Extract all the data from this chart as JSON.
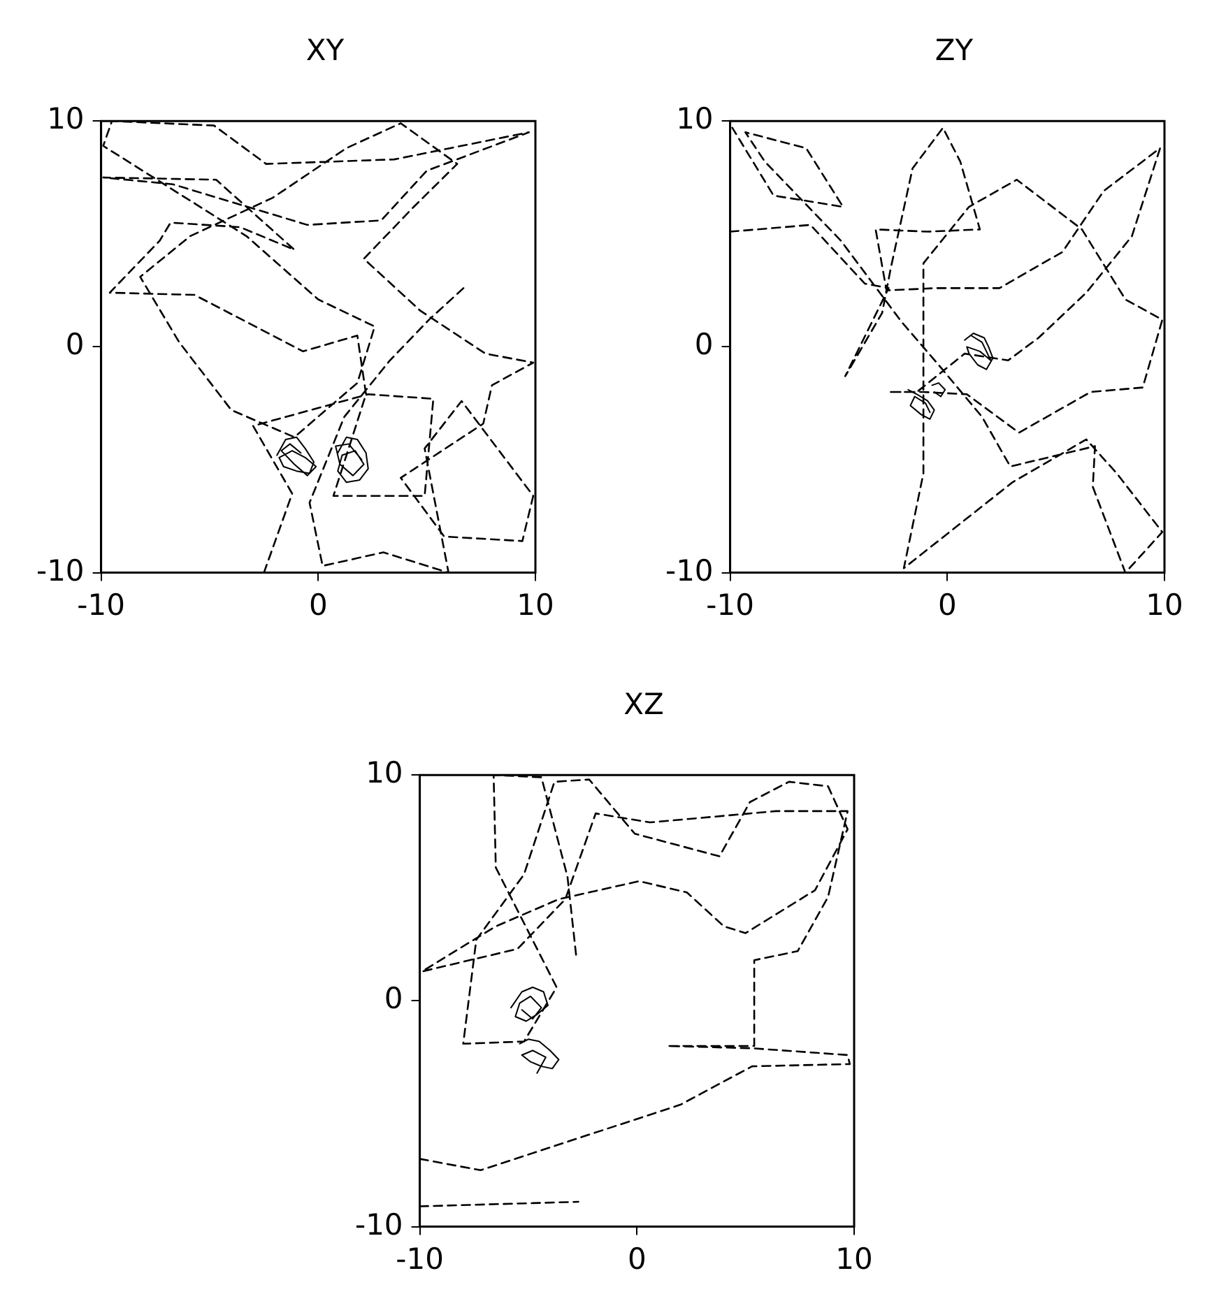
{
  "chart_data": [
    {
      "type": "line",
      "title": "XY",
      "xlim": [
        -10,
        10
      ],
      "ylim": [
        -10,
        10
      ],
      "xticks": [
        -10,
        0,
        10
      ],
      "yticks": [
        -10,
        0,
        10
      ],
      "marker": "none",
      "series": [
        {
          "type": "line",
          "line_style": "dashed",
          "color": "#000000",
          "x": [
            -2.5,
            -1.2,
            -3,
            2.3,
            5.3,
            4.9,
            0.7,
            2.2,
            1.8,
            -0.7,
            -5.7,
            -9.6,
            -7.3,
            -6.8,
            -3.6,
            -1.1,
            -4.7,
            -9.9,
            -6.7,
            -0.5,
            2.9,
            5,
            9.7,
            3.5,
            -2.4,
            -4.8,
            -9.5,
            -9.9,
            -3.3,
            0,
            2.6,
            1.8,
            -1.1,
            -4,
            -6.4,
            -8.2,
            -5.9,
            -2.1,
            1.3,
            3.8,
            6.4,
            4.4,
            2.1,
            4.7,
            7.7,
            9.9,
            8,
            7.6,
            3.8,
            5.8,
            9.4,
            9.9,
            6.6,
            4.9,
            6,
            3,
            0.2,
            -0.4,
            1.2,
            3.3,
            5.1,
            6.8
          ],
          "values": [
            -10,
            -6.5,
            -3.5,
            -2.1,
            -2.3,
            -6.6,
            -6.6,
            -2.1,
            0.5,
            -0.2,
            2.3,
            2.4,
            4.7,
            5.5,
            5.3,
            4.3,
            7.4,
            7.5,
            7.2,
            5.4,
            5.6,
            7.8,
            9.5,
            8.3,
            8.1,
            9.8,
            10,
            8.9,
            4.9,
            2.1,
            0.9,
            -1.6,
            -4,
            -2.8,
            0.2,
            3.1,
            4.9,
            6.6,
            8.8,
            9.9,
            8.1,
            6.2,
            3.9,
            1.6,
            -0.3,
            -0.7,
            -1.7,
            -3.4,
            -5.8,
            -8.4,
            -8.6,
            -6.6,
            -2.4,
            -4.5,
            -10,
            -9.1,
            -9.7,
            -6.9,
            -3.1,
            -0.6,
            1.2,
            2.7
          ]
        },
        {
          "type": "line",
          "line_style": "solid",
          "color": "#000000",
          "x": [
            -1.9,
            -1.5,
            -1,
            -0.6,
            -0.2,
            -0.4,
            -1,
            -1.6,
            -1.8,
            -1.2,
            -0.6,
            -0.1,
            -0.5,
            -1.1,
            -1.7,
            -1.3,
            -0.8,
            null,
            0.9,
            1.3,
            1.8,
            2.2,
            2.3,
            1.9,
            1.3,
            0.9,
            1.1,
            1.7,
            2.1,
            1.6,
            1,
            0.8,
            1.4,
            2
          ],
          "values": [
            -4.8,
            -4.1,
            -4,
            -4.5,
            -5.1,
            -5.6,
            -5.5,
            -5.3,
            -4.9,
            -4.6,
            -4.9,
            -5.3,
            -5.7,
            -5.2,
            -4.6,
            -4.3,
            -4.7,
            null,
            -4.7,
            -4,
            -4.1,
            -4.7,
            -5.4,
            -5.9,
            -6,
            -5.5,
            -4.8,
            -4.6,
            -5.2,
            -5.7,
            -5.2,
            -4.4,
            -4.3,
            -5
          ]
        }
      ]
    },
    {
      "type": "line",
      "title": "ZY",
      "xlim": [
        -10,
        10
      ],
      "ylim": [
        -10,
        10
      ],
      "xticks": [
        -10,
        0,
        10
      ],
      "yticks": [
        -10,
        0,
        10
      ],
      "marker": "none",
      "series": [
        {
          "type": "line",
          "line_style": "dashed",
          "color": "#000000",
          "x": [
            -10,
            -6.3,
            -3.8,
            -2.7,
            -4.7,
            -3,
            -2.6,
            -1.6,
            -0.2,
            0.6,
            1.5,
            -0.9,
            -3.3,
            -2.8,
            -0.5,
            2.4,
            5.3,
            7.2,
            9.8,
            8.5,
            6.4,
            4.2,
            2.8,
            0.8,
            -1.4,
            -2.7,
            -1.1,
            0.9,
            3.3,
            6.6,
            9,
            9.9,
            8.2,
            6.2,
            3.2,
            1,
            -1.1,
            -1.1,
            -2,
            3,
            6.4,
            7.8,
            9.9,
            8.2,
            6.7,
            6.8,
            2.9,
            1.6,
            -0.4,
            -2.1,
            -4.9,
            -8.4,
            -9.3,
            -6.5,
            -4.8,
            -8,
            -9.9
          ],
          "values": [
            5.1,
            5.4,
            2.8,
            2.6,
            -1.3,
            1.5,
            3.5,
            7.9,
            9.7,
            8.2,
            5.2,
            5.1,
            5.2,
            2.5,
            2.6,
            2.6,
            4.2,
            6.9,
            8.8,
            4.9,
            2.4,
            0.4,
            -0.6,
            -0.3,
            -2,
            -2,
            -2,
            -2.1,
            -3.8,
            -2,
            -1.8,
            1.2,
            2.1,
            5.2,
            7.4,
            6.2,
            3.7,
            -5.6,
            -9.8,
            -6,
            -4.1,
            -5.6,
            -8.2,
            -10,
            -6.2,
            -4.4,
            -5.3,
            -3.1,
            -0.8,
            1.1,
            4.7,
            8.2,
            9.5,
            8.8,
            6.2,
            6.7,
            9.7
          ]
        },
        {
          "type": "line",
          "line_style": "solid",
          "color": "#000000",
          "x": [
            0.8,
            1.2,
            1.7,
            1.9,
            2.1,
            1.8,
            1.4,
            1,
            0.9,
            1.5,
            2,
            1.6,
            1.1,
            null,
            -1.8,
            -1.4,
            -0.9,
            -0.6,
            -0.8,
            -1.2,
            -1.7,
            -1.5,
            -1,
            -0.8,
            null,
            -0.7,
            -0.4,
            -0.1,
            -0.3,
            -0.6
          ],
          "values": [
            0.3,
            0.6,
            0.4,
            0,
            -0.5,
            -1,
            -0.8,
            -0.3,
            0,
            -0.2,
            -0.6,
            0.2,
            0.5,
            null,
            -1.9,
            -2.1,
            -2.4,
            -2.8,
            -3.2,
            -3,
            -2.6,
            -2.2,
            -2.5,
            -2.9,
            null,
            -1.7,
            -1.6,
            -1.9,
            -2.2,
            -2
          ]
        }
      ]
    },
    {
      "type": "line",
      "title": "XZ",
      "xlim": [
        -10,
        10
      ],
      "ylim": [
        -10,
        10
      ],
      "xticks": [
        -10,
        0,
        10
      ],
      "yticks": [
        -10,
        0,
        10
      ],
      "marker": "none",
      "series": [
        {
          "type": "line",
          "line_style": "dashed",
          "color": "#000000",
          "x": [
            -10,
            -7.2,
            2,
            5.3,
            9.8,
            9.7,
            5.3,
            1.4,
            5.4,
            5.4,
            7.4,
            8.8,
            9.7,
            6.4,
            0.6,
            -1.9,
            -3.3,
            -5.5,
            -9.9,
            -6.5,
            -3.6,
            0.1,
            2.3,
            4,
            5,
            8.2,
            9.7,
            8.8,
            7,
            5.2,
            3.8,
            -0.1,
            -2.2,
            -3.8,
            -5.2,
            -7.4,
            -8,
            -5.2,
            -3.7,
            -6.5,
            -6.6,
            -4.4,
            -3.2,
            -2.8,
            null,
            -10,
            -2.7
          ],
          "values": [
            -7,
            -7.5,
            -4.6,
            -2.9,
            -2.8,
            -2.4,
            -2.1,
            -2,
            -2,
            1.8,
            2.2,
            4.6,
            8.4,
            8.4,
            7.9,
            8.3,
            4.5,
            2.3,
            1.3,
            3.3,
            4.5,
            5.3,
            4.8,
            3.3,
            3,
            4.9,
            7.6,
            9.5,
            9.7,
            8.8,
            6.4,
            7.4,
            9.8,
            9.7,
            5.6,
            2.7,
            -1.9,
            -1.8,
            0.6,
            5.9,
            10,
            9.9,
            5.5,
            2,
            null,
            -9.1,
            -8.9
          ]
        },
        {
          "type": "line",
          "line_style": "solid",
          "color": "#000000",
          "x": [
            -5.8,
            -5.3,
            -4.8,
            -4.3,
            -4.1,
            -4.6,
            -5.1,
            -5.6,
            -5.4,
            -4.9,
            -4.4,
            -4.8,
            -5.3,
            null,
            -5.4,
            -5,
            -4.5,
            -4,
            -3.6,
            -3.9,
            -4.4,
            -4.9,
            -5.3,
            -4.8,
            -4.2,
            -4.6
          ],
          "values": [
            -0.3,
            0.4,
            0.6,
            0.4,
            -0.2,
            -0.6,
            -0.9,
            -0.7,
            -0.1,
            0.2,
            -0.3,
            -0.8,
            -0.4,
            null,
            -1.9,
            -1.7,
            -1.8,
            -2.2,
            -2.6,
            -3,
            -2.9,
            -2.7,
            -2.4,
            -2.2,
            -2.5,
            -3.2
          ]
        }
      ]
    }
  ]
}
